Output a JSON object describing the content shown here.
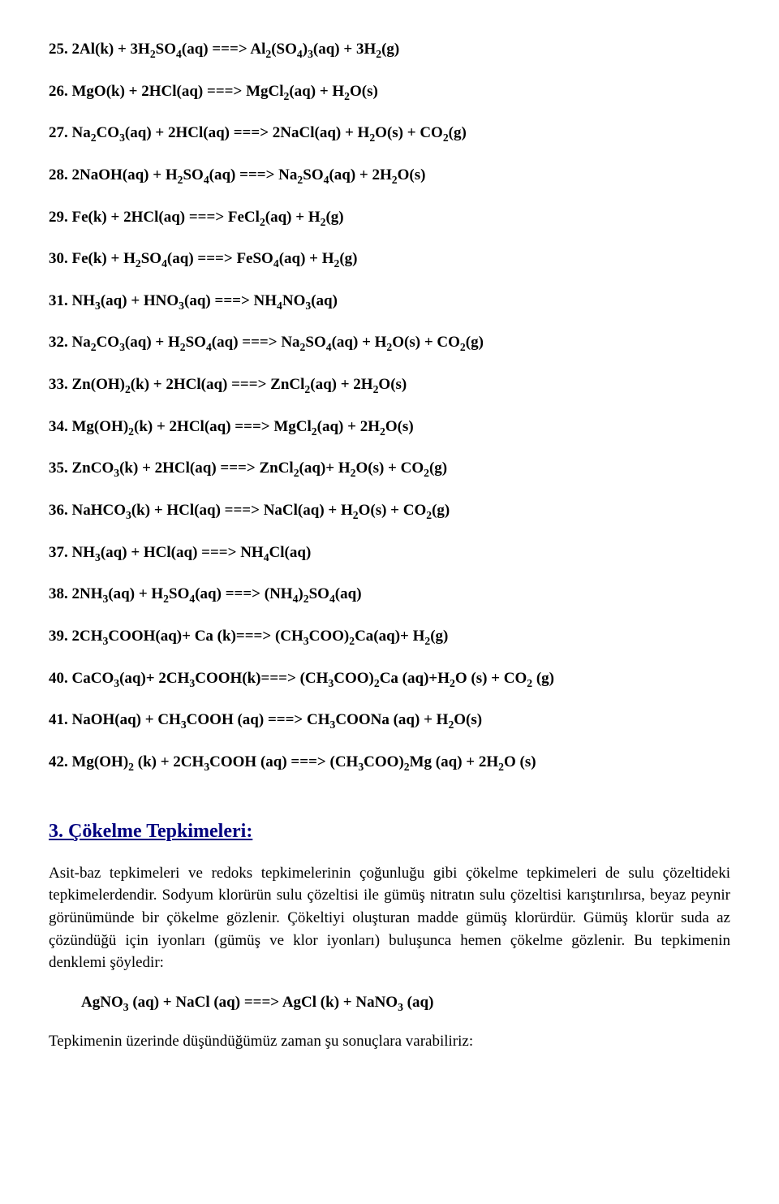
{
  "equations": [
    {
      "n": "25.",
      "txt": "2Al(k) + 3H₂SO₄(aq) ===> Al₂(SO₄)₃(aq) +  3H₂(g)"
    },
    {
      "n": "26.",
      "txt": "MgO(k) + 2HCl(aq) ===> MgCl₂(aq) + H₂O(s)"
    },
    {
      "n": "27.",
      "txt": "Na₂CO₃(aq) + 2HCl(aq) ===> 2NaCl(aq) + H₂O(s) + CO₂(g)"
    },
    {
      "n": "28.",
      "txt": "2NaOH(aq) + H₂SO₄(aq) ===> Na₂SO₄(aq) + 2H₂O(s)"
    },
    {
      "n": "29.",
      "txt": "Fe(k) + 2HCl(aq) ===> FeCl₂(aq) + H₂(g)"
    },
    {
      "n": "30.",
      "txt": "Fe(k) + H₂SO₄(aq) ===> FeSO₄(aq) + H₂(g)"
    },
    {
      "n": "31.",
      "txt": "NH₃(aq) + HNO₃(aq) ===> NH₄NO₃(aq)"
    },
    {
      "n": "32.",
      "txt": "Na₂CO₃(aq) + H₂SO₄(aq) ===> Na₂SO₄(aq) + H₂O(s) + CO₂(g)"
    },
    {
      "n": "33.",
      "txt": "Zn(OH)₂(k) + 2HCl(aq) ===> ZnCl₂(aq) + 2H₂O(s)"
    },
    {
      "n": "34.",
      "txt": "Mg(OH)₂(k) + 2HCl(aq) ===> MgCl₂(aq) + 2H₂O(s)"
    },
    {
      "n": "35.",
      "txt": "ZnCO₃(k) + 2HCl(aq) ===> ZnCl₂(aq)+ H₂O(s) + CO₂(g)"
    },
    {
      "n": "36.",
      "txt": "NaHCO₃(k) + HCl(aq) ===> NaCl(aq) + H₂O(s) + CO₂(g)"
    },
    {
      "n": "37.",
      "txt": "NH₃(aq) + HCl(aq) ===> NH₄Cl(aq)"
    },
    {
      "n": "38.",
      "txt": "2NH₃(aq) + H₂SO₄(aq) ===> (NH₄)₂SO₄(aq)"
    },
    {
      "n": "39.",
      "txt": "2CH₃COOH(aq)+ Ca (k)===> (CH₃COO)₂Ca(aq)+ H₂(g)"
    },
    {
      "n": "40.",
      "txt": "CaCO₃(aq)+ 2CH₃COOH(k)===> (CH₃COO)₂Ca (aq)+H₂O (s) + CO₂ (g)"
    },
    {
      "n": "41.",
      "txt": "NaOH(aq) + CH₃COOH (aq) ===> CH₃COONa (aq) + H₂O(s)"
    },
    {
      "n": "42.",
      "txt": "Mg(OH)₂ (k) + 2CH₃COOH (aq) ===> (CH₃COO)₂Mg (aq) + 2H₂O (s)"
    }
  ],
  "section_heading": "3. Çökelme Tepkimeleri:",
  "para1": "Asit-baz tepkimeleri ve redoks tepkimelerinin çoğunluğu gibi çökelme tepkimeleri de sulu çözeltideki tepkimelerdendir. Sodyum klorürün sulu çözeltisi ile gümüş nitratın sulu çözeltisi karıştırılırsa, beyaz peynir görünümünde bir çökelme gözlenir. Çökeltiyi oluşturan madde gümüş klorürdür. Gümüş klorür suda az çözündüğü için iyonları (gümüş ve klor iyonları) buluşunca hemen çökelme gözlenir. Bu tepkimenin denklemi şöyledir:",
  "indent_eq": "AgNO₃ (aq) + NaCl (aq) ===> AgCl (k) + NaNO₃ (aq)",
  "para2": "Tepkimenin üzerinde düşündüğümüz zaman şu sonuçlara varabiliriz:"
}
